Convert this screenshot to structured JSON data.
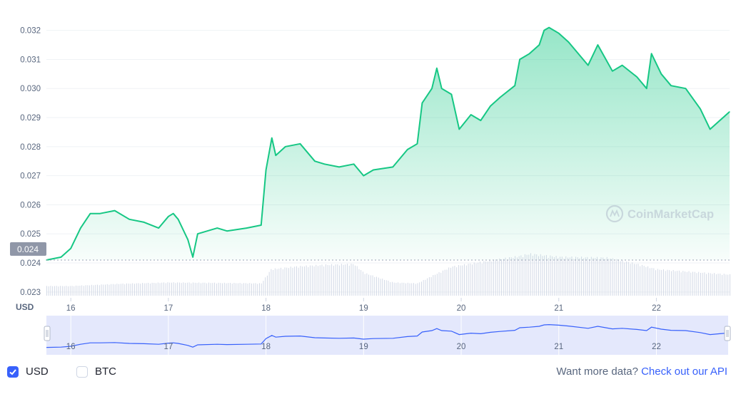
{
  "chart_data": {
    "type": "area",
    "currency_label": "USD",
    "y_ticks": [
      0.023,
      0.024,
      0.025,
      0.026,
      0.027,
      0.028,
      0.029,
      0.03,
      0.031,
      0.032
    ],
    "y_tick_labels": [
      "0.023",
      "0.024",
      "0.025",
      "0.026",
      "0.027",
      "0.028",
      "0.029",
      "0.030",
      "0.031",
      "0.032"
    ],
    "ylim": [
      0.0228,
      0.0328
    ],
    "x_ticks": [
      16,
      17,
      18,
      19,
      20,
      21,
      22
    ],
    "x_tick_labels": [
      "16",
      "17",
      "18",
      "19",
      "20",
      "21",
      "22"
    ],
    "xlim": [
      15.75,
      22.75
    ],
    "reference_price": 0.0241,
    "reference_label": "0.024",
    "watermark": "CoinMarketCap",
    "line_color": "#16c784",
    "series": [
      {
        "x": [
          15.75,
          15.9,
          16.0,
          16.1,
          16.2,
          16.3,
          16.45,
          16.6,
          16.75,
          16.9,
          17.0,
          17.05,
          17.1,
          17.2,
          17.25,
          17.3,
          17.5,
          17.6,
          17.8,
          17.95,
          18.0,
          18.06,
          18.1,
          18.2,
          18.35,
          18.5,
          18.6,
          18.75,
          18.9,
          19.0,
          19.1,
          19.3,
          19.45,
          19.55,
          19.6,
          19.7,
          19.75,
          19.8,
          19.9,
          19.98,
          20.1,
          20.2,
          20.3,
          20.4,
          20.55,
          20.6,
          20.7,
          20.8,
          20.85,
          20.9,
          21.0,
          21.1,
          21.3,
          21.4,
          21.55,
          21.65,
          21.8,
          21.9,
          21.95,
          22.05,
          22.15,
          22.3,
          22.45,
          22.55,
          22.65,
          22.75
        ],
        "y": [
          0.0241,
          0.0242,
          0.0245,
          0.0252,
          0.0257,
          0.0257,
          0.0258,
          0.0255,
          0.0254,
          0.0252,
          0.0256,
          0.0257,
          0.0255,
          0.0248,
          0.0242,
          0.025,
          0.0252,
          0.0251,
          0.0252,
          0.0253,
          0.0272,
          0.0283,
          0.0277,
          0.028,
          0.0281,
          0.0275,
          0.0274,
          0.0273,
          0.0274,
          0.027,
          0.0272,
          0.0273,
          0.0279,
          0.0281,
          0.0295,
          0.03,
          0.0307,
          0.03,
          0.0298,
          0.0286,
          0.0291,
          0.0289,
          0.0294,
          0.0297,
          0.0301,
          0.031,
          0.0312,
          0.0315,
          0.032,
          0.0321,
          0.0319,
          0.0316,
          0.0308,
          0.0315,
          0.0306,
          0.0308,
          0.0304,
          0.03,
          0.0312,
          0.0305,
          0.0301,
          0.03,
          0.0293,
          0.0286,
          0.0289,
          0.0292
        ]
      }
    ],
    "volume_color": "#cfd6e4",
    "volume": {
      "x": [
        15.75,
        16.0,
        16.5,
        17.0,
        17.5,
        17.95,
        18.05,
        18.3,
        18.6,
        18.9,
        19.0,
        19.3,
        19.55,
        19.7,
        19.9,
        20.3,
        20.6,
        20.7,
        21.0,
        21.5,
        21.8,
        22.0,
        22.3,
        22.75
      ],
      "v": [
        0.22,
        0.22,
        0.27,
        0.3,
        0.29,
        0.28,
        0.6,
        0.66,
        0.7,
        0.72,
        0.52,
        0.3,
        0.28,
        0.45,
        0.66,
        0.8,
        0.9,
        0.95,
        0.88,
        0.86,
        0.72,
        0.6,
        0.55,
        0.48
      ]
    }
  },
  "navigator": {
    "x_tick_labels": [
      "16",
      "17",
      "18",
      "19",
      "20",
      "21",
      "22"
    ]
  },
  "footer": {
    "usd_label": "USD",
    "btc_label": "BTC",
    "usd_checked": true,
    "btc_checked": false,
    "api_text": "Want more data?",
    "api_link": "Check out our API"
  }
}
